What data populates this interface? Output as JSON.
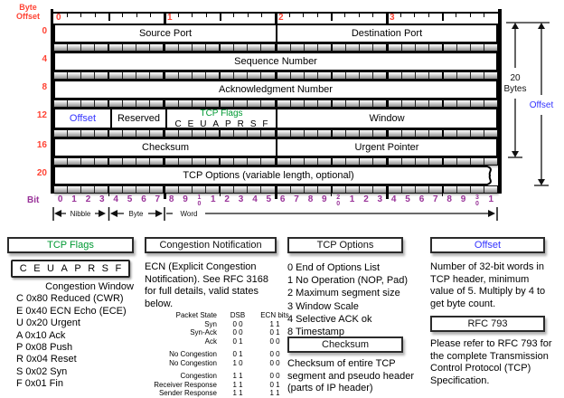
{
  "colors": {
    "red": "#ff4334",
    "purple": "#993399",
    "green": "#009933",
    "blue": "#3333ff"
  },
  "diagram": {
    "byte_offset_label": [
      "Byte",
      "Offset"
    ],
    "ruler_numbers": [
      "0",
      "1",
      "2",
      "3"
    ],
    "rows": [
      {
        "offset": "0",
        "fields": [
          {
            "label": "Source Port",
            "bits": 16
          },
          {
            "label": "Destination Port",
            "bits": 16
          }
        ]
      },
      {
        "offset": "4",
        "fields": [
          {
            "label": "Sequence Number",
            "bits": 32
          }
        ]
      },
      {
        "offset": "8",
        "fields": [
          {
            "label": "Acknowledgment Number",
            "bits": 32
          }
        ]
      },
      {
        "offset": "12",
        "fields": [
          {
            "label": "Offset",
            "bits": 4,
            "color": "blue"
          },
          {
            "label": "Reserved",
            "bits": 4
          },
          {
            "label": "TCP Flags",
            "bits": 8,
            "color": "green",
            "sub": [
              "C",
              "E",
              "U",
              "A",
              "P",
              "R",
              "S",
              "F"
            ]
          },
          {
            "label": "Window",
            "bits": 16
          }
        ]
      },
      {
        "offset": "16",
        "fields": [
          {
            "label": "Checksum",
            "bits": 16
          },
          {
            "label": "Urgent Pointer",
            "bits": 16
          }
        ]
      },
      {
        "offset": "20",
        "fields": [
          {
            "label": "TCP Options (variable length, optional)",
            "bits": 32,
            "torn": true
          }
        ]
      }
    ],
    "bit_label": "Bit",
    "bit_numbers": [
      "0",
      "1",
      "2",
      "3",
      "4",
      "5",
      "6",
      "7",
      "8",
      "9",
      "10",
      "1",
      "2",
      "3",
      "4",
      "5",
      "6",
      "7",
      "8",
      "9",
      "20",
      "1",
      "2",
      "3",
      "4",
      "5",
      "6",
      "7",
      "8",
      "9",
      "30",
      "1"
    ],
    "scale_labels": {
      "nibble": "Nibble",
      "byte": "Byte",
      "word": "Word"
    },
    "right_labels": {
      "bytes_value": "20",
      "bytes_unit": "Bytes",
      "offset": "Offset"
    }
  },
  "sections": {
    "tcp_flags": {
      "title": "TCP Flags",
      "letters": [
        "C",
        "E",
        "U",
        "A",
        "P",
        "R",
        "S",
        "F"
      ],
      "first_line": "Congestion Window",
      "items": [
        "C 0x80 Reduced (CWR)",
        "E 0x40 ECN Echo (ECE)",
        "U 0x20 Urgent",
        "A 0x10 Ack",
        "P 0x08 Push",
        "R 0x04 Reset",
        "S 0x02 Syn",
        "F 0x01 Fin"
      ]
    },
    "congestion": {
      "title": "Congestion Notification",
      "paragraph": "ECN (Explicit Congestion Notification).  See RFC 3168 for full details, valid states below.",
      "table": {
        "headers": [
          "Packet State",
          "DSB",
          "ECN bits"
        ],
        "rows": [
          [
            "Syn",
            "0 0",
            "1 1"
          ],
          [
            "Syn-Ack",
            "0 0",
            "0 1"
          ],
          [
            "Ack",
            "0 1",
            "0 0"
          ],
          null,
          [
            "No Congestion",
            "0 1",
            "0 0"
          ],
          [
            "No Congestion",
            "1 0",
            "0 0"
          ],
          null,
          [
            "Congestion",
            "1 1",
            "0 0"
          ],
          [
            "Receiver Response",
            "1 1",
            "0 1"
          ],
          [
            "Sender Response",
            "1 1",
            "1 1"
          ]
        ]
      }
    },
    "tcp_options": {
      "title": "TCP Options",
      "items": [
        "0 End of Options List",
        "1 No Operation (NOP, Pad)",
        "2 Maximum segment size",
        "3 Window Scale",
        "4 Selective ACK ok",
        "8 Timestamp"
      ]
    },
    "checksum": {
      "title": "Checksum",
      "paragraph": "Checksum of entire TCP segment and pseudo header (parts of IP header)"
    },
    "offset": {
      "title": "Offset",
      "paragraph": "Number of 32-bit words in TCP header, minimum value of 5.  Multiply by 4 to get byte count."
    },
    "rfc": {
      "title": "RFC 793",
      "paragraph": "Please refer to RFC 793 for the complete Transmission Control Protocol (TCP) Specification."
    }
  }
}
